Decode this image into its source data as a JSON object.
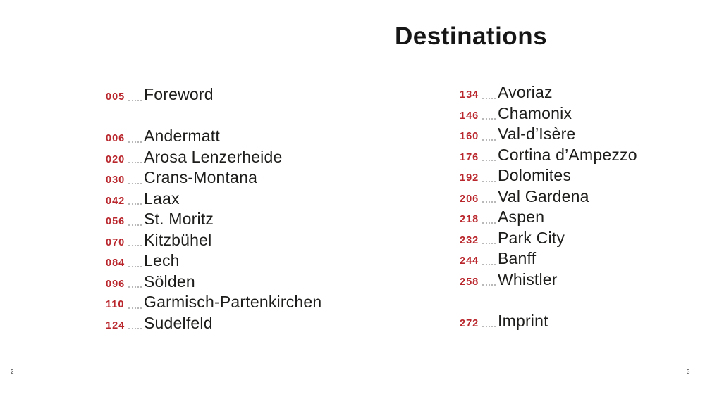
{
  "page": {
    "title": "Destinations",
    "folio_left": "2",
    "folio_right": "3",
    "accent_color": "#b9262c",
    "text_color": "#1d1d1b"
  },
  "toc": {
    "left_column": [
      {
        "entries": [
          {
            "page": "005",
            "label": "Foreword"
          }
        ]
      },
      {
        "entries": [
          {
            "page": "006",
            "label": "Andermatt"
          },
          {
            "page": "020",
            "label": "Arosa Lenzerheide"
          },
          {
            "page": "030",
            "label": "Crans-Montana"
          },
          {
            "page": "042",
            "label": "Laax"
          },
          {
            "page": "056",
            "label": "St. Moritz"
          },
          {
            "page": "070",
            "label": "Kitzbühel"
          },
          {
            "page": "084",
            "label": "Lech"
          },
          {
            "page": "096",
            "label": "Sölden"
          },
          {
            "page": "110",
            "label": "Garmisch-Partenkirchen"
          },
          {
            "page": "124",
            "label": "Sudelfeld"
          }
        ]
      }
    ],
    "right_column": [
      {
        "entries": [
          {
            "page": "134",
            "label": "Avoriaz"
          },
          {
            "page": "146",
            "label": "Chamonix"
          },
          {
            "page": "160",
            "label": "Val-d’Isère"
          },
          {
            "page": "176",
            "label": "Cortina d’Ampezzo"
          },
          {
            "page": "192",
            "label": "Dolomites"
          },
          {
            "page": "206",
            "label": "Val Gardena"
          },
          {
            "page": "218",
            "label": "Aspen"
          },
          {
            "page": "232",
            "label": "Park City"
          },
          {
            "page": "244",
            "label": "Banff"
          },
          {
            "page": "258",
            "label": "Whistler"
          }
        ]
      },
      {
        "entries": [
          {
            "page": "272",
            "label": "Imprint"
          }
        ]
      }
    ]
  }
}
